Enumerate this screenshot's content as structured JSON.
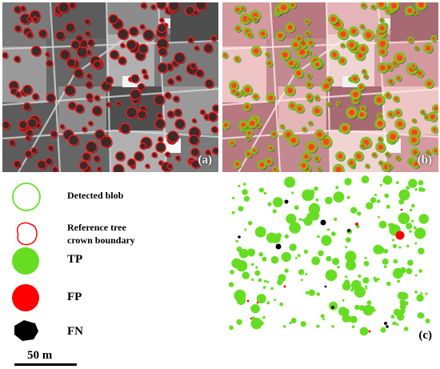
{
  "panels": {
    "a_label": "(a)",
    "b_label": "(b)",
    "c_label": "(c)"
  },
  "legend": {
    "detected_blob": "Detected blob",
    "reference_line1": "Reference tree",
    "reference_line2": "crown boundary",
    "tp": "TP",
    "fp": "FP",
    "fn": "FN"
  },
  "scale_bar": {
    "label": "50 m"
  },
  "colors": {
    "tp": "#66dd22",
    "fp": "#ff0000",
    "fn": "#000000",
    "blob_outline": "#66dd22",
    "reference_outline": "#ff0000"
  }
}
